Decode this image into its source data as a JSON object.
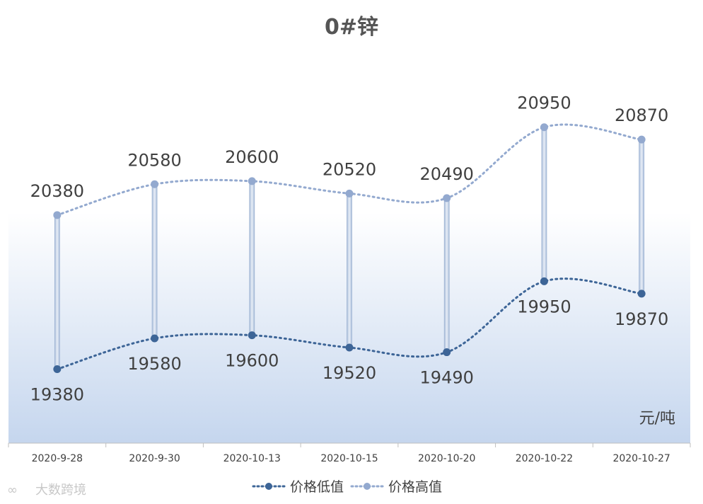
{
  "chart_data": {
    "type": "line",
    "title": "0#锌",
    "unit": "元/吨",
    "categories": [
      "2020-9-28",
      "2020-9-30",
      "2020-10-13",
      "2020-10-15",
      "2020-10-20",
      "2020-10-22",
      "2020-10-27"
    ],
    "series": [
      {
        "name": "价格低值",
        "values": [
          19380,
          19580,
          19600,
          19520,
          19490,
          19950,
          19870
        ],
        "color": "#3d6597"
      },
      {
        "name": "价格高值",
        "values": [
          20380,
          20580,
          20600,
          20520,
          20490,
          20950,
          20870
        ],
        "color": "#93a9cf"
      }
    ],
    "ylim": [
      18900,
      21500
    ],
    "grid": false,
    "legend_position": "bottom",
    "high_low_lines": true
  },
  "watermark": "大数跨境"
}
